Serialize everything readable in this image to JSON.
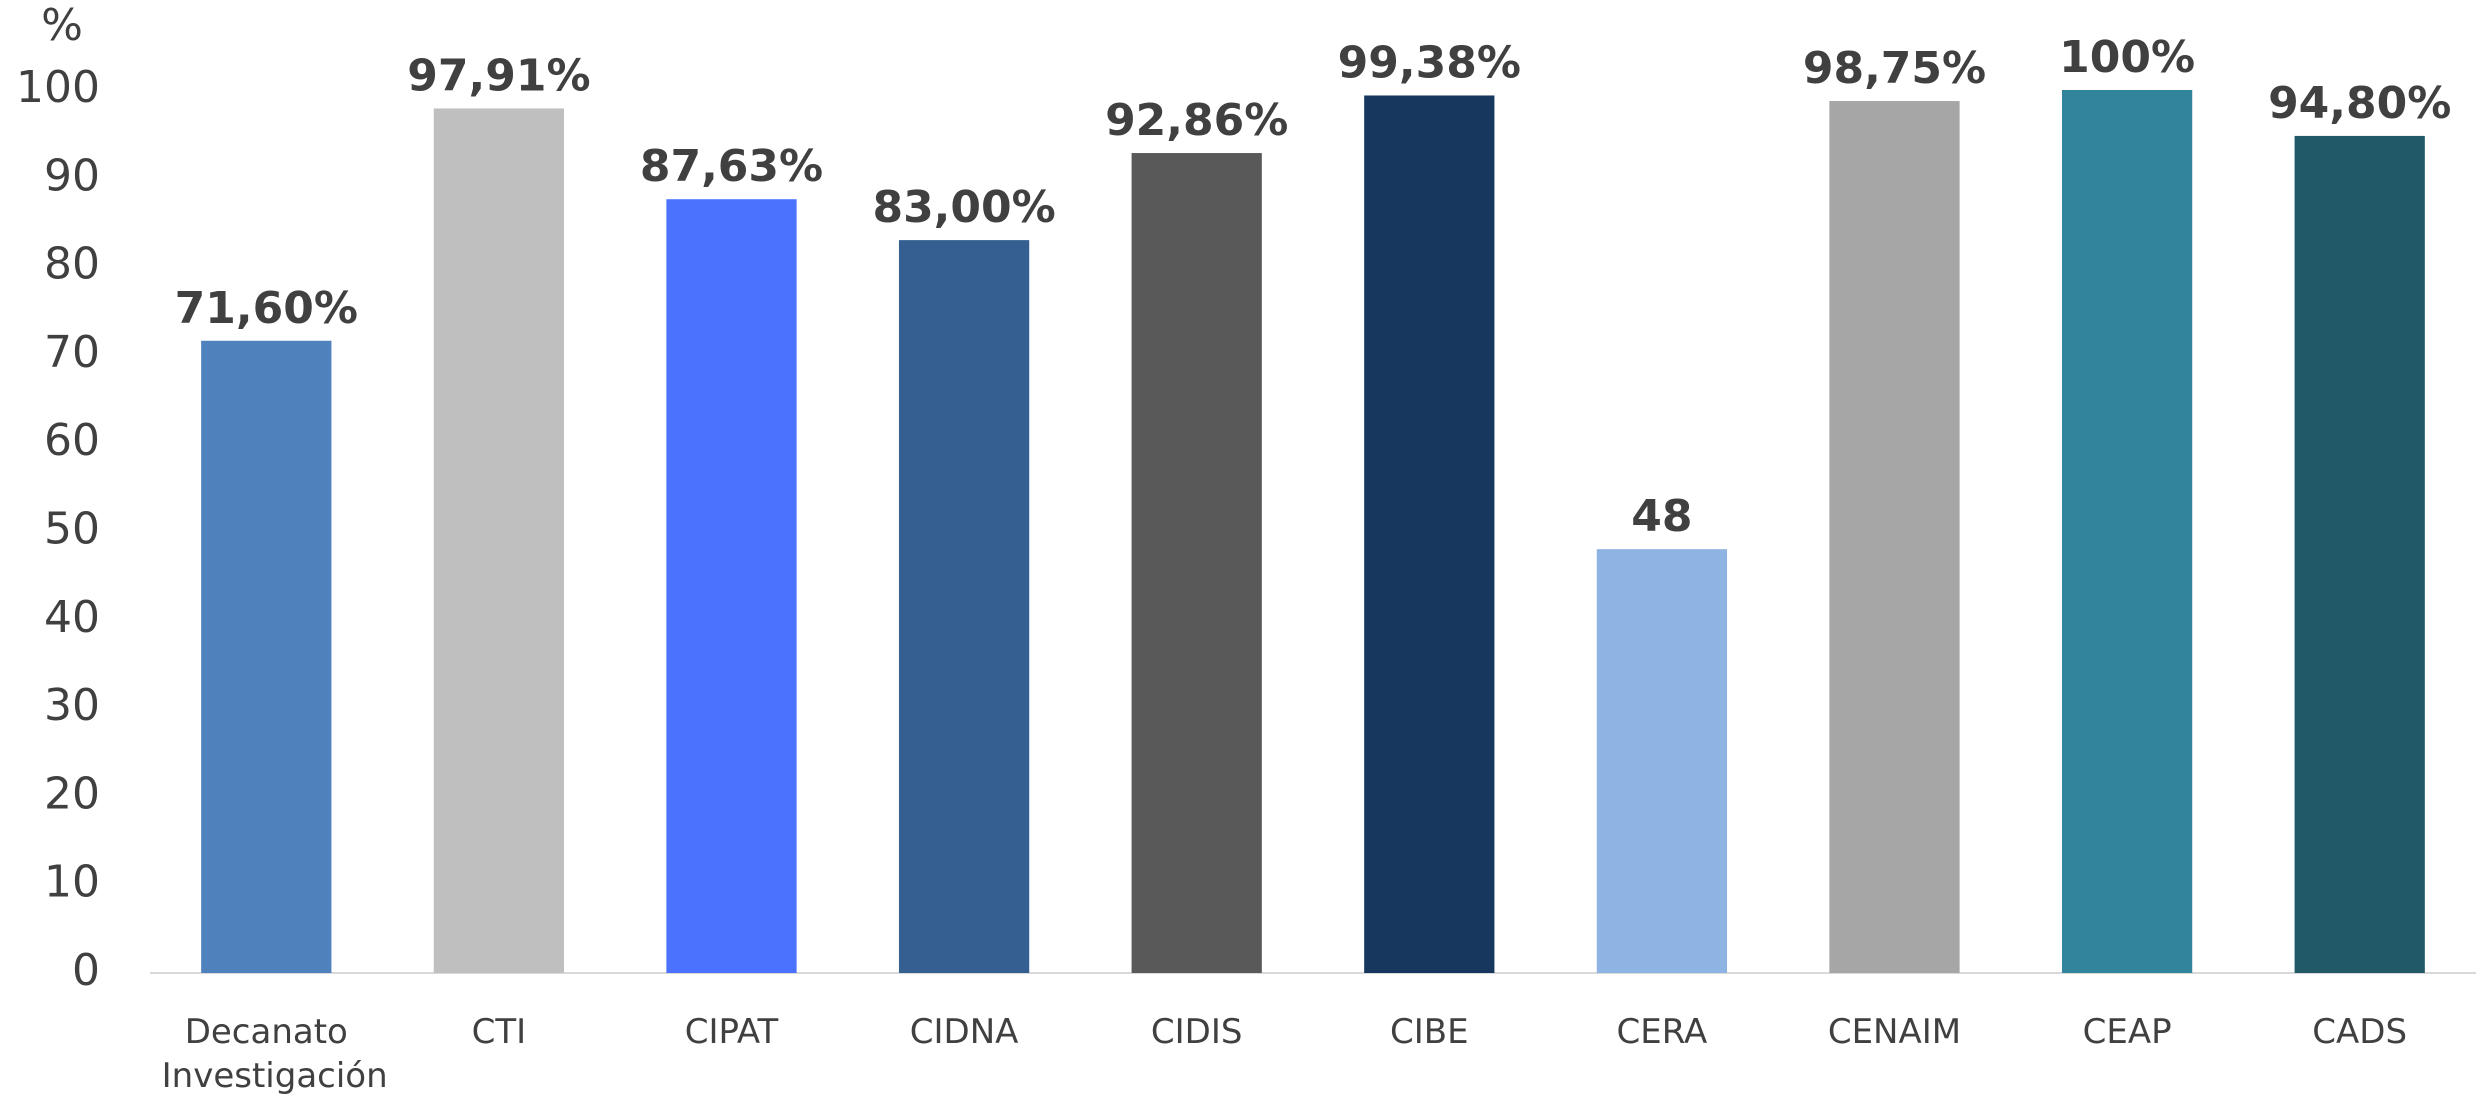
{
  "chart_data": {
    "type": "bar",
    "y_label": "%",
    "categories": [
      "Decanato Investigación",
      "CTI",
      "CIPAT",
      "CIDNA",
      "CIDIS",
      "CIBE",
      "CERA",
      "CENAIM",
      "CEAP",
      "CADS"
    ],
    "values": [
      71.6,
      97.91,
      87.63,
      83.0,
      92.86,
      99.38,
      48,
      98.75,
      100,
      94.8
    ],
    "value_labels": [
      "71,60%",
      "97,91%",
      "87,63%",
      "83,00%",
      "92,86%",
      "99,38%",
      "48",
      "98,75%",
      "100%",
      "94,80%"
    ],
    "colors": [
      "#4f81bd",
      "#bfbfbf",
      "#4a72ff",
      "#365f91",
      "#595959",
      "#17375e",
      "#8eb4e3",
      "#a6a6a6",
      "#31849b",
      "#215968"
    ],
    "ylim": [
      0,
      100
    ],
    "yticks": [
      0,
      10,
      20,
      30,
      40,
      50,
      60,
      70,
      80,
      90,
      100
    ],
    "grid": false
  }
}
